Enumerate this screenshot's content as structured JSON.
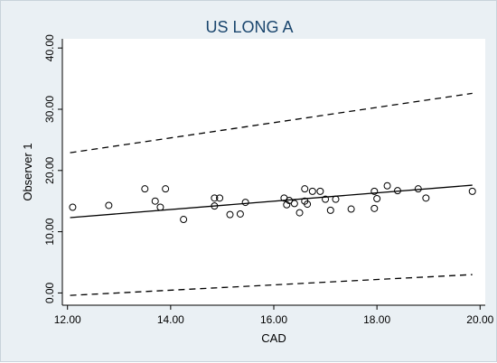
{
  "chart_data": {
    "type": "scatter",
    "title": "US LONG A",
    "xlabel": "CAD",
    "ylabel": "Observer 1",
    "xlim": [
      11.9,
      20.1
    ],
    "ylim": [
      -2.0,
      41.5
    ],
    "xticks": [
      12,
      14,
      16,
      18,
      20
    ],
    "xtick_labels": [
      "12.00",
      "14.00",
      "16.00",
      "18.00",
      "20.00"
    ],
    "yticks": [
      0,
      10,
      20,
      30,
      40
    ],
    "ytick_labels": [
      "0.00",
      "10.00",
      "20.00",
      "30.00",
      "40.00"
    ],
    "grid": false,
    "legend": "none",
    "colors": {
      "background": "#eaf0f4",
      "plot_area": "#ffffff",
      "title": "#1a466e",
      "marks": "#000000"
    },
    "points": [
      {
        "x": 12.1,
        "y": 14.0
      },
      {
        "x": 12.8,
        "y": 14.3
      },
      {
        "x": 13.5,
        "y": 17.0
      },
      {
        "x": 13.7,
        "y": 15.0
      },
      {
        "x": 13.8,
        "y": 14.0
      },
      {
        "x": 13.9,
        "y": 17.0
      },
      {
        "x": 14.25,
        "y": 12.0
      },
      {
        "x": 14.85,
        "y": 15.5
      },
      {
        "x": 14.85,
        "y": 14.2
      },
      {
        "x": 14.95,
        "y": 15.5
      },
      {
        "x": 15.15,
        "y": 12.8
      },
      {
        "x": 15.35,
        "y": 12.9
      },
      {
        "x": 15.45,
        "y": 14.8
      },
      {
        "x": 16.2,
        "y": 15.5
      },
      {
        "x": 16.25,
        "y": 14.4
      },
      {
        "x": 16.3,
        "y": 15.1
      },
      {
        "x": 16.4,
        "y": 14.6
      },
      {
        "x": 16.5,
        "y": 13.1
      },
      {
        "x": 16.6,
        "y": 17.0
      },
      {
        "x": 16.6,
        "y": 15.0
      },
      {
        "x": 16.65,
        "y": 14.5
      },
      {
        "x": 16.75,
        "y": 16.6
      },
      {
        "x": 16.9,
        "y": 16.6
      },
      {
        "x": 17.0,
        "y": 15.3
      },
      {
        "x": 17.1,
        "y": 13.5
      },
      {
        "x": 17.2,
        "y": 15.3
      },
      {
        "x": 17.5,
        "y": 13.7
      },
      {
        "x": 17.95,
        "y": 16.6
      },
      {
        "x": 17.95,
        "y": 13.8
      },
      {
        "x": 18.0,
        "y": 15.4
      },
      {
        "x": 18.2,
        "y": 17.5
      },
      {
        "x": 18.4,
        "y": 16.7
      },
      {
        "x": 18.8,
        "y": 17.0
      },
      {
        "x": 18.95,
        "y": 15.5
      },
      {
        "x": 19.85,
        "y": 16.6
      }
    ],
    "lines": [
      {
        "style": "solid",
        "x": [
          12.05,
          19.85
        ],
        "y": [
          12.3,
          17.6
        ]
      },
      {
        "style": "dashed",
        "x": [
          12.05,
          19.85
        ],
        "y": [
          22.9,
          32.6
        ]
      },
      {
        "style": "dashed",
        "x": [
          12.05,
          19.85
        ],
        "y": [
          -0.4,
          3.0
        ]
      }
    ]
  }
}
